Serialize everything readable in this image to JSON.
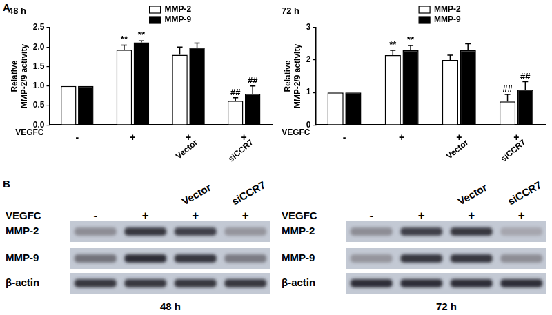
{
  "panels": [
    "A",
    "B"
  ],
  "chart_data": [
    {
      "type": "bar",
      "title": "48 h",
      "y_label": [
        "Relative",
        "MMP-2/9 activity"
      ],
      "x_row_label": "VEGFC",
      "categories": [
        "-",
        "+",
        "+",
        "+"
      ],
      "treatments": [
        null,
        null,
        "Vector",
        "siCCR7"
      ],
      "series": [
        {
          "name": "MMP-2",
          "color": "#ffffff",
          "values": [
            1.0,
            1.93,
            1.8,
            0.62
          ],
          "errors": [
            0,
            0.12,
            0.2,
            0.08
          ],
          "marks": [
            null,
            "**",
            null,
            "##"
          ]
        },
        {
          "name": "MMP-9",
          "color": "#000000",
          "values": [
            1.0,
            2.12,
            1.98,
            0.8
          ],
          "errors": [
            0,
            0.04,
            0.12,
            0.2
          ],
          "marks": [
            null,
            "**",
            null,
            "##"
          ]
        }
      ],
      "ylim": [
        0,
        2.5
      ],
      "yticks": [
        {
          "value": 0,
          "label": "0.0"
        },
        0.5,
        {
          "value": 1,
          "label": "1.0"
        },
        1.5,
        {
          "value": 2,
          "label": "2.0"
        },
        2.5
      ],
      "grid": false,
      "legend": "upper right"
    },
    {
      "type": "bar",
      "title": "72 h",
      "y_label": [
        "Relative",
        "MMP-2/9 activity"
      ],
      "x_row_label": "VEGFC",
      "categories": [
        "-",
        "+",
        "+",
        "+"
      ],
      "treatments": [
        null,
        null,
        "Vector",
        "siCCR7"
      ],
      "series": [
        {
          "name": "MMP-2",
          "color": "#ffffff",
          "values": [
            1.0,
            2.15,
            2.0,
            0.72
          ],
          "errors": [
            0,
            0.15,
            0.15,
            0.22
          ],
          "marks": [
            null,
            "**",
            null,
            "##"
          ]
        },
        {
          "name": "MMP-9",
          "color": "#000000",
          "values": [
            1.0,
            2.3,
            2.3,
            1.08
          ],
          "errors": [
            0,
            0.15,
            0.2,
            0.25
          ],
          "marks": [
            null,
            "**",
            null,
            "##"
          ]
        }
      ],
      "ylim": [
        0,
        3
      ],
      "yticks": [
        0,
        1,
        2,
        3
      ],
      "grid": false,
      "legend": "upper right"
    }
  ],
  "blots": [
    {
      "title": "48 h",
      "row_label": "VEGFC",
      "lanes": [
        "-",
        "+",
        "+",
        "+"
      ],
      "treatments": [
        null,
        null,
        "Vector",
        "siCCR7"
      ],
      "rows": [
        {
          "name": "MMP-2",
          "intensity": [
            0.35,
            0.85,
            0.8,
            0.3
          ]
        },
        {
          "name": "MMP-9",
          "intensity": [
            0.5,
            0.9,
            0.85,
            0.45
          ]
        },
        {
          "name": "β-actin",
          "intensity": [
            0.85,
            0.85,
            0.85,
            0.85
          ]
        }
      ]
    },
    {
      "title": "72 h",
      "row_label": "VEGFC",
      "lanes": [
        "-",
        "+",
        "+",
        "+"
      ],
      "treatments": [
        null,
        null,
        "Vector",
        "siCCR7"
      ],
      "rows": [
        {
          "name": "MMP-2",
          "intensity": [
            0.35,
            0.8,
            0.85,
            0.2
          ]
        },
        {
          "name": "MMP-9",
          "intensity": [
            0.3,
            0.85,
            0.85,
            0.35
          ]
        },
        {
          "name": "β-actin",
          "intensity": [
            0.9,
            0.9,
            0.9,
            0.9
          ]
        }
      ]
    }
  ]
}
